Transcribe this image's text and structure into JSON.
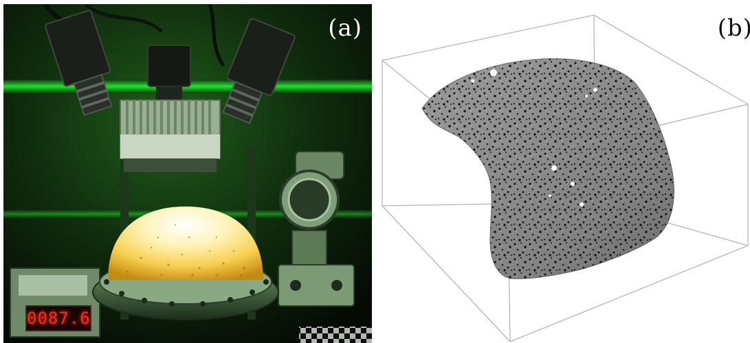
{
  "figure": {
    "panel_a": {
      "label": "(a)",
      "counter_readout": "0087.6"
    },
    "panel_b": {
      "label": "(b)"
    }
  },
  "colors": {
    "background": "#ffffff",
    "lab_green": "#22ff33",
    "dome_glow": "#ffe36a",
    "speckle_gray": "#9a9a9a",
    "box_line": "#b5b5b5",
    "counter_red": "#ff2a1a"
  },
  "icons": {
    "camera_left": "camera-icon",
    "camera_center": "camera-icon",
    "camera_right": "camera-icon",
    "pressure_gauge": "gauge-icon"
  }
}
